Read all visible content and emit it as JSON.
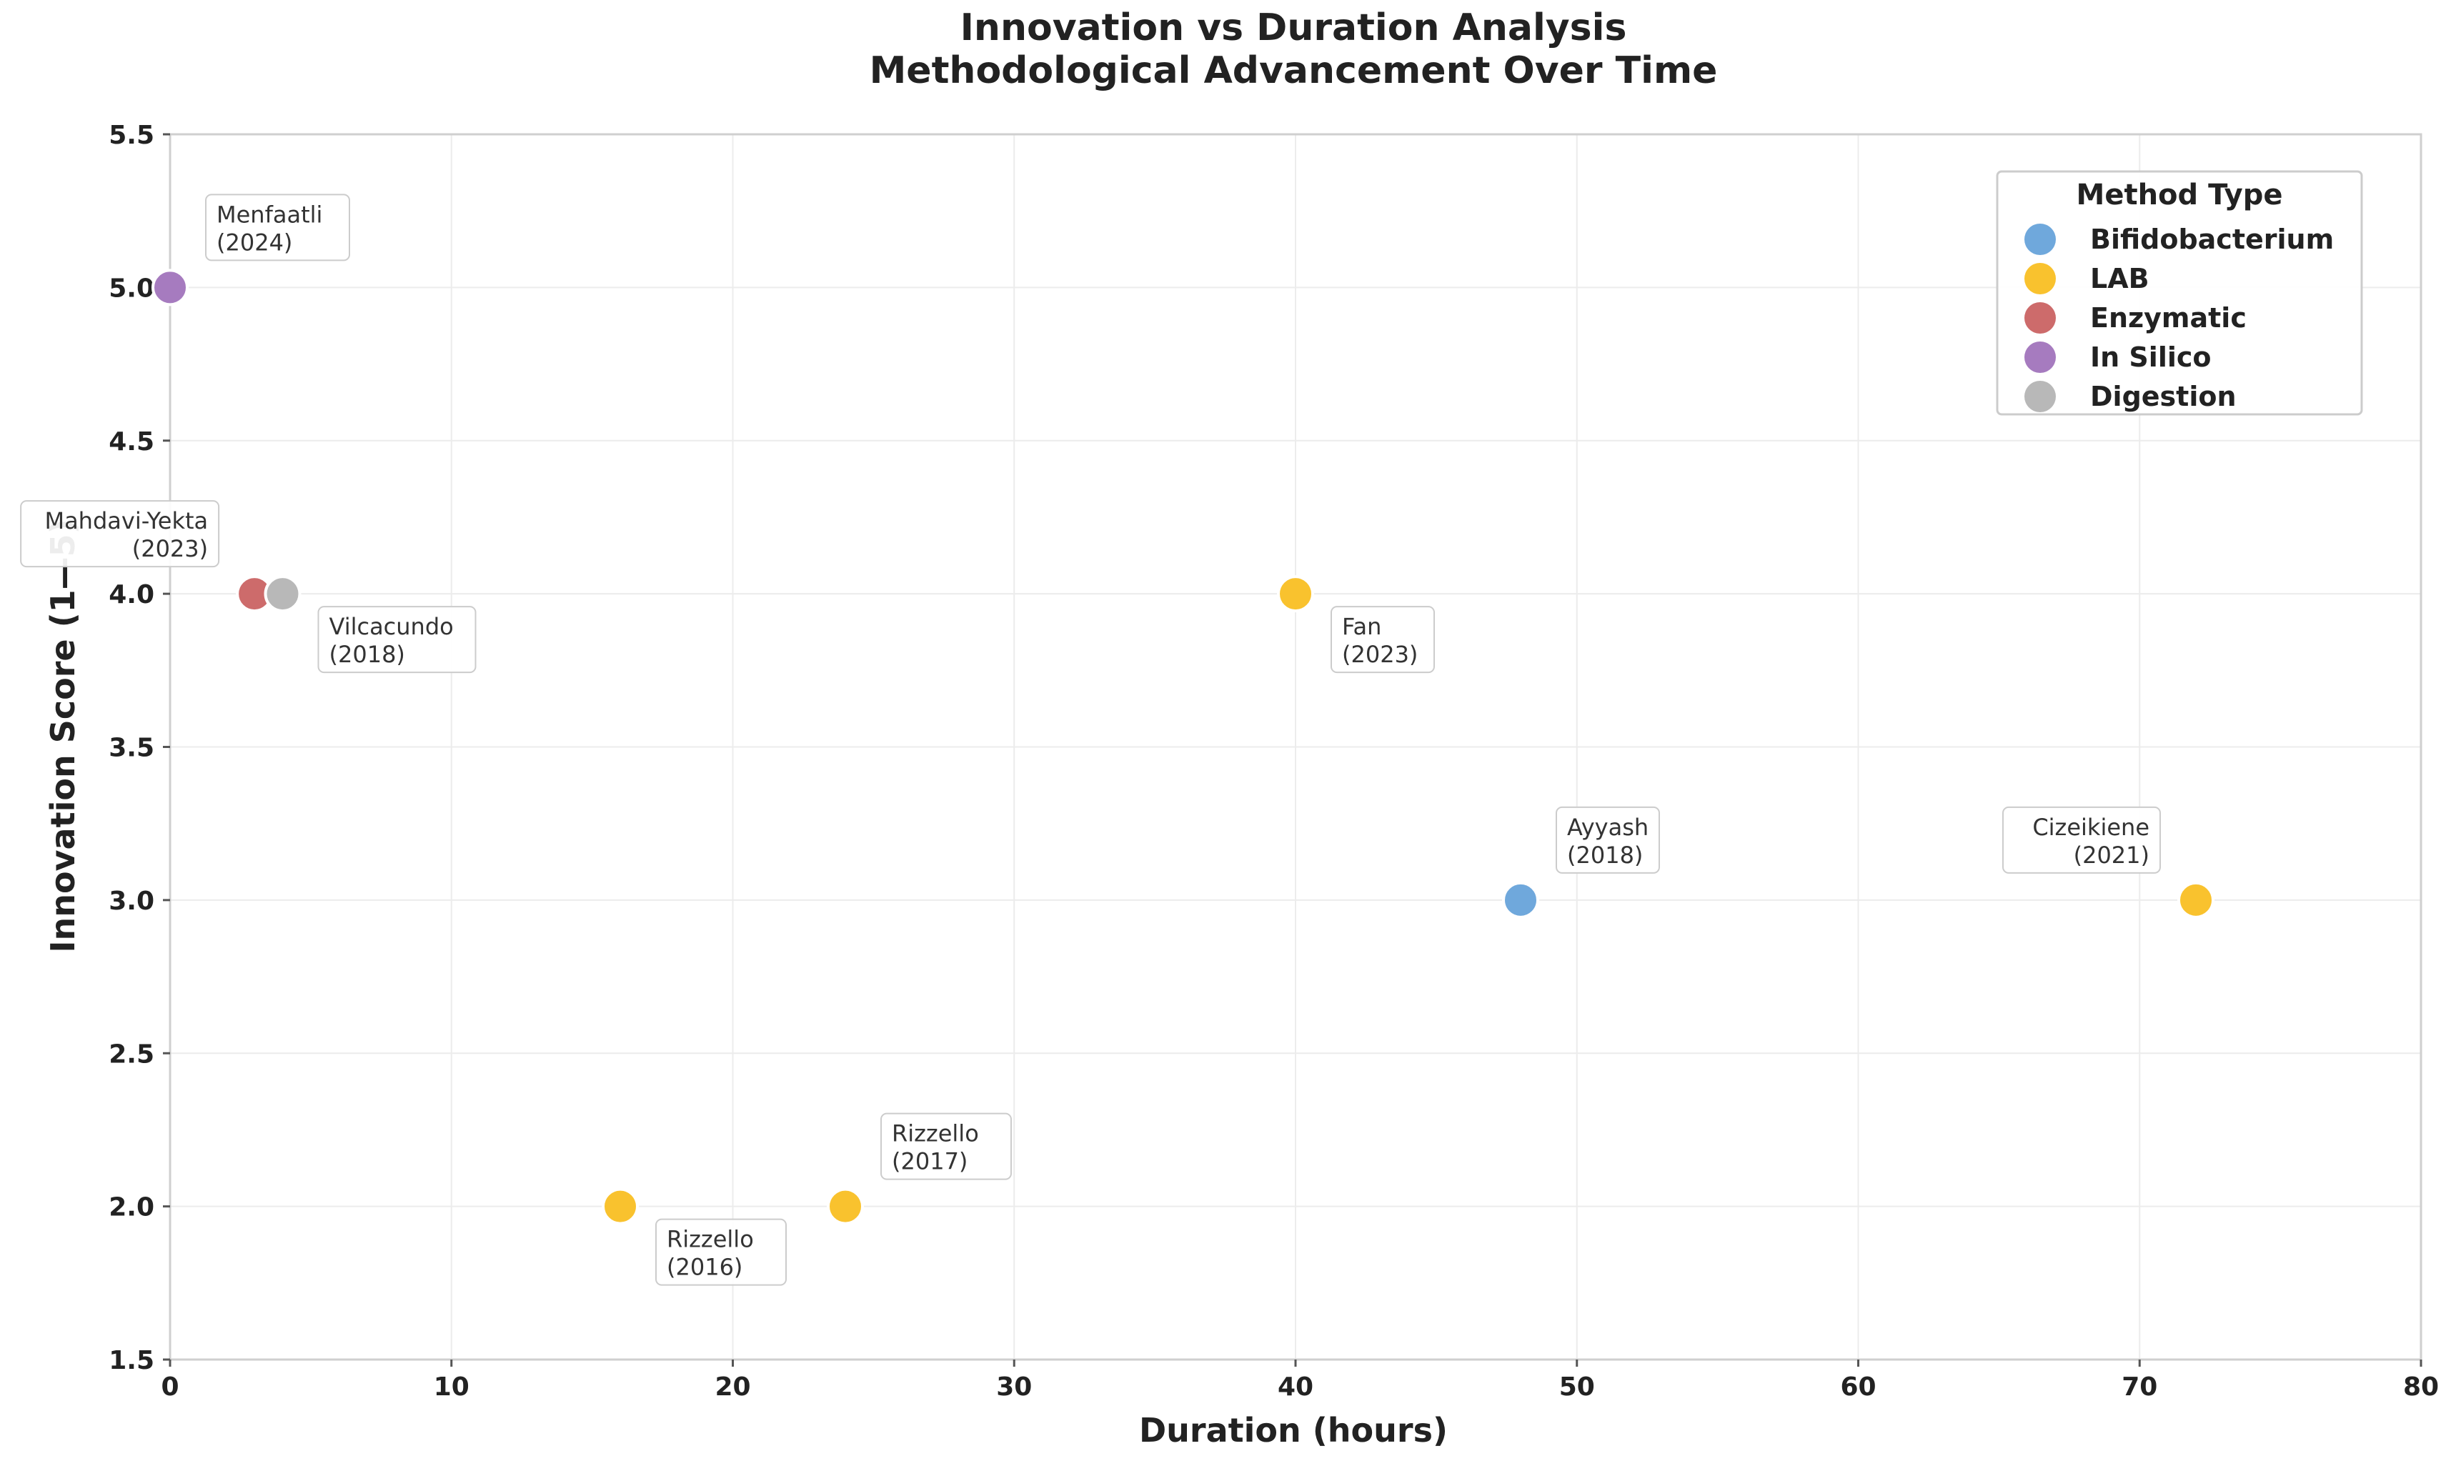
{
  "chart_data": {
    "type": "scatter",
    "title": [
      "Innovation vs Duration Analysis",
      "Methodological Advancement Over Time"
    ],
    "xlabel": "Duration (hours)",
    "ylabel": "Innovation Score (1—5)",
    "xlim": [
      0,
      80
    ],
    "ylim": [
      1.5,
      5.5
    ],
    "xticks": [
      0,
      10,
      20,
      30,
      40,
      50,
      60,
      70,
      80
    ],
    "yticks": [
      1.5,
      2.0,
      2.5,
      3.0,
      3.5,
      4.0,
      4.5,
      5.0,
      5.5
    ],
    "grid": true,
    "legend": {
      "title": "Method Type",
      "placement": "top-right",
      "entries": [
        {
          "name": "Bifidobacterium",
          "color": "#6fa8dc"
        },
        {
          "name": "LAB",
          "color": "#f9c22e"
        },
        {
          "name": "Enzymatic",
          "color": "#cd6b6b"
        },
        {
          "name": "In Silico",
          "color": "#a67bbf"
        },
        {
          "name": "Digestion",
          "color": "#b8b8b8"
        }
      ]
    },
    "points": [
      {
        "author": "Menfaatli",
        "year": "(2024)",
        "x": 0,
        "y": 5.0,
        "series": "In Silico",
        "label_pos": "above-right"
      },
      {
        "author": "Mahdavi-Yekta",
        "year": "(2023)",
        "x": 3,
        "y": 4.0,
        "series": "Enzymatic",
        "label_pos": "above-left"
      },
      {
        "author": "Vilcacundo",
        "year": "(2018)",
        "x": 4,
        "y": 4.0,
        "series": "Digestion",
        "label_pos": "below-right"
      },
      {
        "author": "Fan",
        "year": "(2023)",
        "x": 40,
        "y": 4.0,
        "series": "LAB",
        "label_pos": "below-right"
      },
      {
        "author": "Ayyash",
        "year": "(2018)",
        "x": 48,
        "y": 3.0,
        "series": "Bifidobacterium",
        "label_pos": "above-right"
      },
      {
        "author": "Cizeikiene",
        "year": "(2021)",
        "x": 72,
        "y": 3.0,
        "series": "LAB",
        "label_pos": "above-left"
      },
      {
        "author": "Rizzello",
        "year": "(2016)",
        "x": 16,
        "y": 2.0,
        "series": "LAB",
        "label_pos": "below-right"
      },
      {
        "author": "Rizzello",
        "year": "(2017)",
        "x": 24,
        "y": 2.0,
        "series": "LAB",
        "label_pos": "above-right"
      }
    ]
  }
}
